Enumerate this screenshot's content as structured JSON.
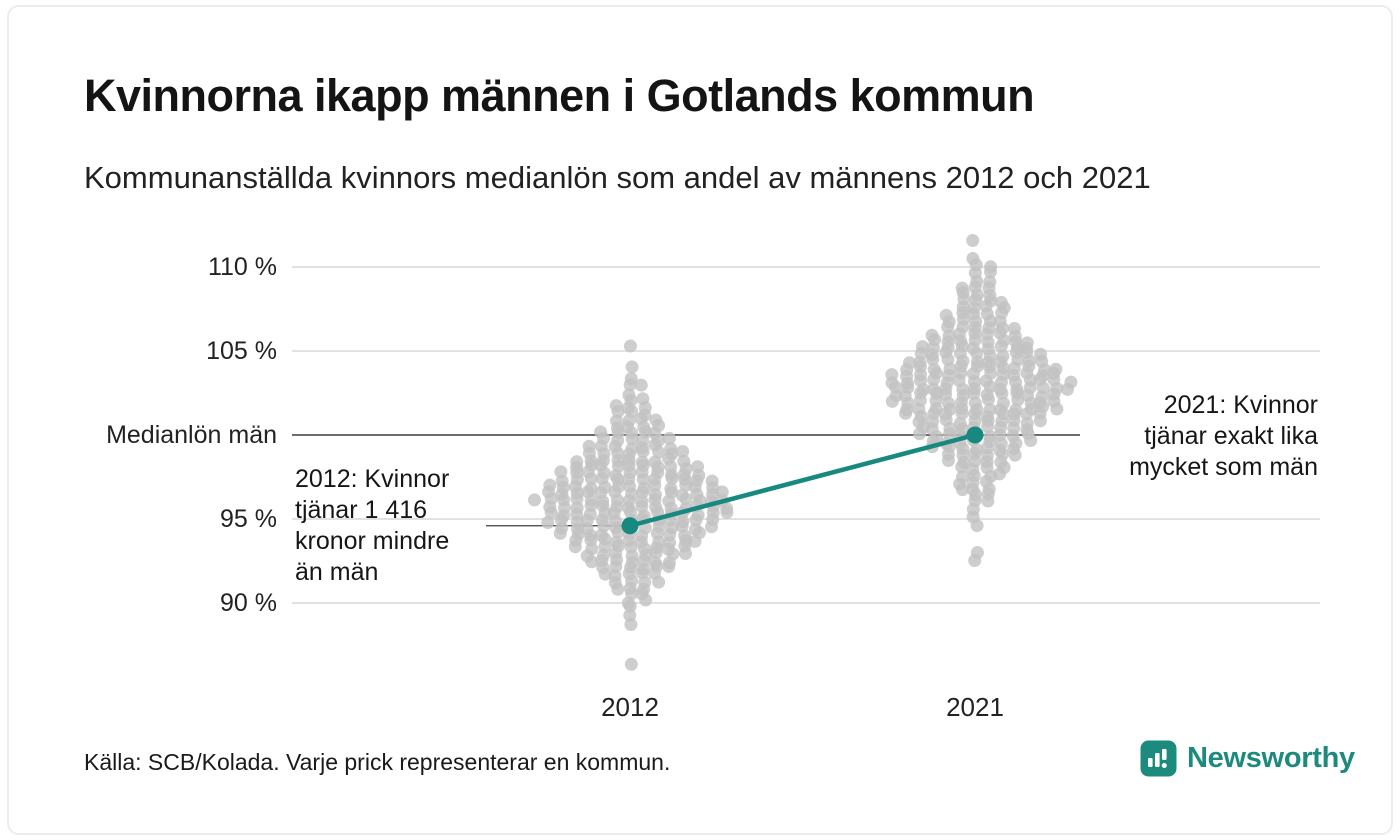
{
  "header": {
    "title": "Kvinnorna ikapp männen i Gotlands kommun",
    "subtitle": "Kommunanställda kvinnors medianlön som andel av männens 2012 och 2021"
  },
  "chart_data": {
    "type": "scatter",
    "variant": "beeswarm",
    "unit": "%",
    "x_categories": [
      "2012",
      "2021"
    ],
    "y_axis": {
      "min": 86,
      "max": 112,
      "gridlines": [
        {
          "value": 110,
          "label": "110 %",
          "emphasis": false
        },
        {
          "value": 105,
          "label": "105 %",
          "emphasis": false
        },
        {
          "value": 100,
          "label": "Medianlön män",
          "emphasis": true
        },
        {
          "value": 95,
          "label": "95 %",
          "emphasis": false
        },
        {
          "value": 90,
          "label": "90 %",
          "emphasis": false
        }
      ]
    },
    "dot_color": "#c2c2c2",
    "distributions": {
      "2012": [
        [
          105.3,
          1
        ],
        [
          104.1,
          1
        ],
        [
          103.4,
          1
        ],
        [
          102.9,
          2
        ],
        [
          102.5,
          1
        ],
        [
          102.1,
          2
        ],
        [
          101.7,
          3
        ],
        [
          101.3,
          3
        ],
        [
          100.9,
          4
        ],
        [
          100.5,
          4
        ],
        [
          100.1,
          5
        ],
        [
          99.7,
          6
        ],
        [
          99.3,
          7
        ],
        [
          98.9,
          8
        ],
        [
          98.5,
          9
        ],
        [
          98.1,
          10
        ],
        [
          97.7,
          11
        ],
        [
          97.3,
          12
        ],
        [
          96.9,
          13
        ],
        [
          96.5,
          14
        ],
        [
          96.1,
          15
        ],
        [
          95.7,
          14
        ],
        [
          95.3,
          14
        ],
        [
          94.9,
          13
        ],
        [
          94.5,
          12
        ],
        [
          94.1,
          11
        ],
        [
          93.7,
          10
        ],
        [
          93.3,
          9
        ],
        [
          92.9,
          8
        ],
        [
          92.5,
          7
        ],
        [
          92.1,
          6
        ],
        [
          91.7,
          5
        ],
        [
          91.3,
          4
        ],
        [
          90.9,
          3
        ],
        [
          90.5,
          2
        ],
        [
          90.1,
          2
        ],
        [
          89.7,
          1
        ],
        [
          89.2,
          1
        ],
        [
          88.8,
          1
        ],
        [
          86.4,
          1
        ]
      ],
      "2021": [
        [
          111.5,
          1
        ],
        [
          110.6,
          1
        ],
        [
          110.1,
          2
        ],
        [
          109.6,
          2
        ],
        [
          109.2,
          2
        ],
        [
          108.8,
          3
        ],
        [
          108.4,
          3
        ],
        [
          108.0,
          4
        ],
        [
          107.6,
          4
        ],
        [
          107.2,
          5
        ],
        [
          106.8,
          5
        ],
        [
          106.4,
          6
        ],
        [
          106.0,
          7
        ],
        [
          105.6,
          8
        ],
        [
          105.2,
          9
        ],
        [
          104.8,
          10
        ],
        [
          104.4,
          11
        ],
        [
          104.0,
          12
        ],
        [
          103.6,
          13
        ],
        [
          103.2,
          14
        ],
        [
          102.8,
          14
        ],
        [
          102.4,
          13
        ],
        [
          102.0,
          13
        ],
        [
          101.6,
          12
        ],
        [
          101.2,
          11
        ],
        [
          100.8,
          10
        ],
        [
          100.4,
          9
        ],
        [
          100.0,
          9
        ],
        [
          99.6,
          8
        ],
        [
          99.2,
          7
        ],
        [
          98.8,
          6
        ],
        [
          98.4,
          5
        ],
        [
          98.0,
          4
        ],
        [
          97.6,
          4
        ],
        [
          97.2,
          3
        ],
        [
          96.8,
          3
        ],
        [
          96.4,
          2
        ],
        [
          96.0,
          2
        ],
        [
          95.6,
          1
        ],
        [
          95.2,
          1
        ],
        [
          94.6,
          1
        ],
        [
          93.0,
          1
        ],
        [
          92.6,
          1
        ]
      ]
    },
    "highlight": {
      "color": "#17897e",
      "points": [
        {
          "x": "2012",
          "value": 94.6
        },
        {
          "x": "2021",
          "value": 100.0
        }
      ]
    },
    "annotations": [
      {
        "id": "2012",
        "text": "2012: Kvinnor\ntjänar 1 416\nkronor mindre\nän män"
      },
      {
        "id": "2021",
        "text": "2021: Kvinnor\ntjänar exakt lika\nmycket som män"
      }
    ]
  },
  "footer": {
    "source": "Källa: SCB/Kolada. Varje prick representerar en kommun.",
    "brand": "Newsworthy",
    "brand_color": "#1d8a7e"
  }
}
